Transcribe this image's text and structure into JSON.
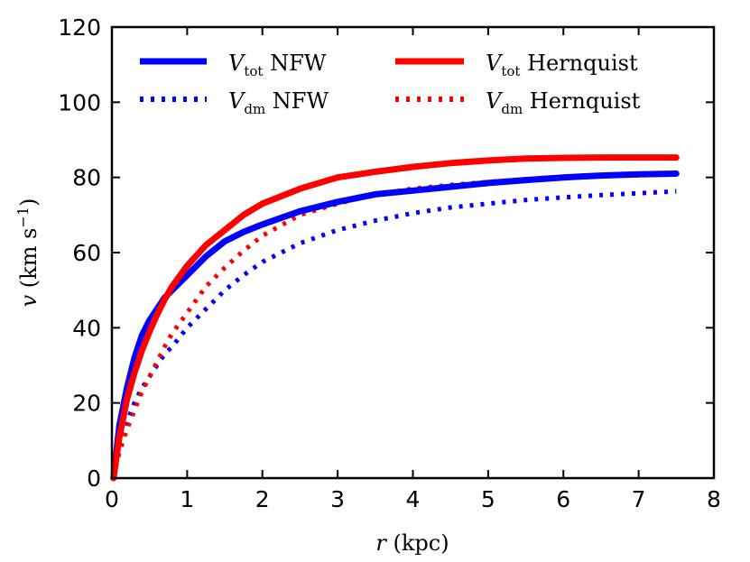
{
  "chart_data": {
    "type": "line",
    "title": "",
    "xlabel": {
      "var": "r",
      "unit": "(kpc)"
    },
    "ylabel": {
      "var": "v",
      "unit_pre": "(km s",
      "unit_exp": "−1",
      "unit_post": ")"
    },
    "xlim": [
      0,
      8
    ],
    "ylim": [
      0,
      120
    ],
    "xticks": [
      0,
      1,
      2,
      3,
      4,
      5,
      6,
      7,
      8
    ],
    "yticks": [
      0,
      20,
      40,
      60,
      80,
      100,
      120
    ],
    "grid": false,
    "legend_position": "top",
    "colors": {
      "nfw": "#0000ff",
      "hernquist": "#ff0000"
    },
    "series": [
      {
        "name": "V_tot NFW",
        "legend": {
          "main": "V",
          "sub": "tot",
          "rest": " NFW"
        },
        "color": "#0000ff",
        "style": "solid",
        "x": [
          0.02,
          0.1,
          0.2,
          0.3,
          0.4,
          0.5,
          0.6,
          0.7,
          0.8,
          1.0,
          1.25,
          1.5,
          1.75,
          2.0,
          2.5,
          3.0,
          3.5,
          4.0,
          4.5,
          5.0,
          5.5,
          6.0,
          6.5,
          7.0,
          7.5
        ],
        "values": [
          0,
          14,
          24,
          32,
          38,
          42,
          45,
          48,
          50,
          54,
          59,
          63,
          65.5,
          67.5,
          71,
          73.5,
          75.5,
          76.5,
          77.5,
          78.5,
          79.3,
          80,
          80.5,
          80.8,
          81
        ]
      },
      {
        "name": "V_dm NFW",
        "legend": {
          "main": "V",
          "sub": "dm",
          "rest": " NFW"
        },
        "color": "#0000ff",
        "style": "dotted",
        "x": [
          0.02,
          0.1,
          0.2,
          0.3,
          0.4,
          0.5,
          0.6,
          0.7,
          0.8,
          1.0,
          1.25,
          1.5,
          1.75,
          2.0,
          2.5,
          3.0,
          3.5,
          4.0,
          4.5,
          5.0,
          5.5,
          6.0,
          6.5,
          7.0,
          7.5
        ],
        "values": [
          0,
          9,
          15,
          20,
          24,
          27,
          30,
          33,
          35,
          40,
          45,
          50,
          54,
          57.5,
          62.5,
          66,
          68.5,
          70.5,
          72,
          73,
          74,
          74.7,
          75.3,
          75.8,
          76.3
        ]
      },
      {
        "name": "V_tot Hernquist",
        "legend": {
          "main": "V",
          "sub": "tot",
          "rest": " Hernquist"
        },
        "color": "#ff0000",
        "style": "solid",
        "x": [
          0.02,
          0.1,
          0.2,
          0.3,
          0.4,
          0.5,
          0.6,
          0.7,
          0.8,
          1.0,
          1.25,
          1.5,
          1.75,
          2.0,
          2.5,
          3.0,
          3.5,
          4.0,
          4.5,
          5.0,
          5.5,
          6.0,
          6.5,
          7.0,
          7.5
        ],
        "values": [
          0,
          11,
          21,
          28,
          34,
          39,
          43.5,
          47.5,
          51,
          56.5,
          62,
          66,
          70,
          73,
          77,
          80,
          81.5,
          82.8,
          83.8,
          84.5,
          85,
          85.2,
          85.3,
          85.3,
          85.3
        ]
      },
      {
        "name": "V_dm Hernquist",
        "legend": {
          "main": "V",
          "sub": "dm",
          "rest": " Hernquist"
        },
        "color": "#ff0000",
        "style": "dotted",
        "x": [
          0.02,
          0.1,
          0.2,
          0.3,
          0.4,
          0.5,
          0.6,
          0.7,
          0.8,
          1.0,
          1.25,
          1.5,
          1.75,
          2.0,
          2.5,
          3.0,
          3.5,
          4.0,
          4.5,
          5.0,
          5.5,
          6.0,
          6.5,
          7.0,
          7.5
        ],
        "values": [
          0,
          7,
          13,
          18,
          23,
          27,
          31,
          35,
          38.5,
          44,
          51,
          56,
          60.5,
          64.5,
          70,
          73,
          75.5,
          77,
          78,
          78.8,
          79.5,
          80,
          80.3,
          80.6,
          80.8
        ]
      }
    ]
  }
}
